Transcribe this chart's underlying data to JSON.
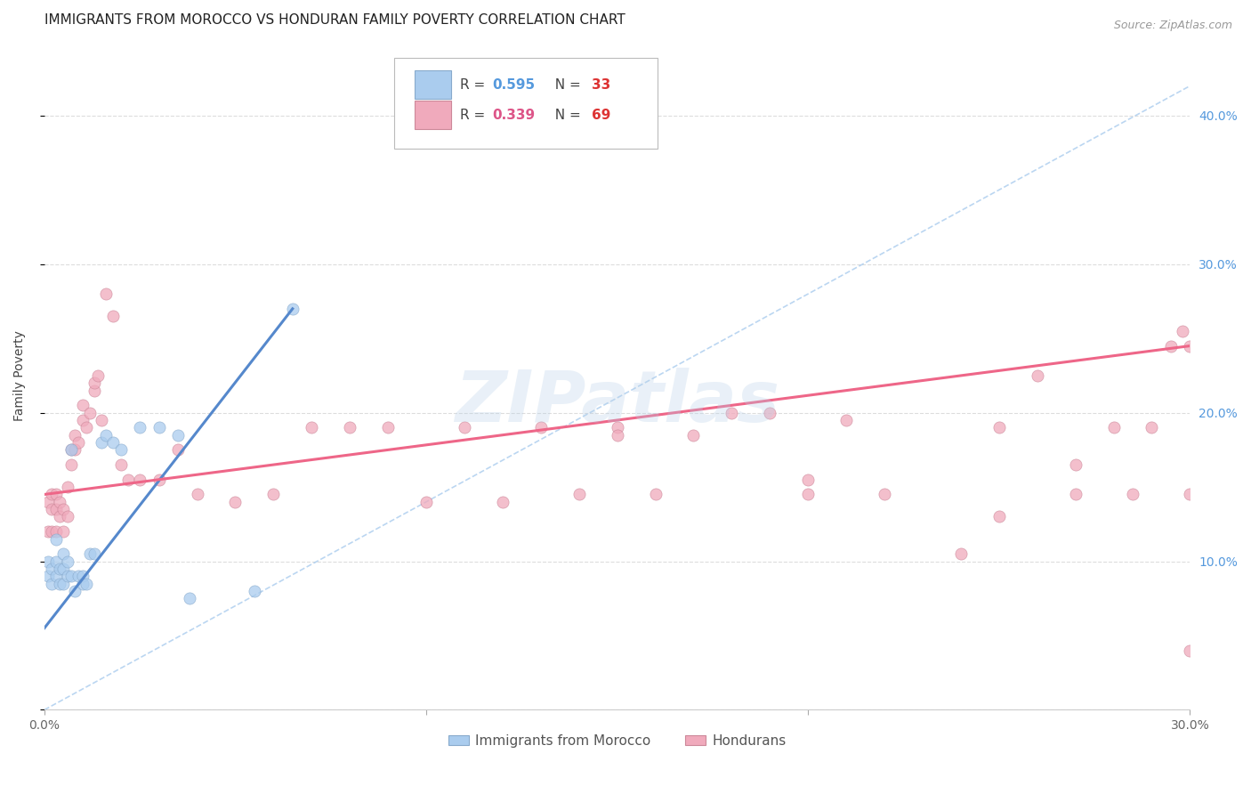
{
  "title": "IMMIGRANTS FROM MOROCCO VS HONDURAN FAMILY POVERTY CORRELATION CHART",
  "source": "Source: ZipAtlas.com",
  "ylabel": "Family Poverty",
  "xlim": [
    0.0,
    0.3
  ],
  "ylim": [
    0.0,
    0.45
  ],
  "ytick_values": [
    0.0,
    0.1,
    0.2,
    0.3,
    0.4
  ],
  "ytick_right_labels": [
    "",
    "10.0%",
    "20.0%",
    "30.0%",
    "40.0%"
  ],
  "xtick_values": [
    0.0,
    0.1,
    0.2,
    0.3
  ],
  "xtick_labels": [
    "0.0%",
    "",
    "",
    "30.0%"
  ],
  "legend_entries": [
    {
      "label": "Immigrants from Morocco",
      "color": "#aaccee",
      "edge": "#88aacc",
      "R": "0.595",
      "N": "33",
      "R_color": "#5599dd",
      "N_color": "#dd3333"
    },
    {
      "label": "Hondurans",
      "color": "#f0aabc",
      "edge": "#cc8899",
      "R": "0.339",
      "N": "69",
      "R_color": "#dd5588",
      "N_color": "#dd3333"
    }
  ],
  "background_color": "#ffffff",
  "grid_color": "#dddddd",
  "blue_scatter_x": [
    0.001,
    0.001,
    0.002,
    0.002,
    0.003,
    0.003,
    0.003,
    0.004,
    0.004,
    0.005,
    0.005,
    0.005,
    0.006,
    0.006,
    0.007,
    0.007,
    0.008,
    0.009,
    0.01,
    0.01,
    0.011,
    0.012,
    0.013,
    0.015,
    0.016,
    0.018,
    0.02,
    0.025,
    0.03,
    0.035,
    0.038,
    0.055,
    0.065
  ],
  "blue_scatter_y": [
    0.09,
    0.1,
    0.085,
    0.095,
    0.09,
    0.1,
    0.115,
    0.085,
    0.095,
    0.085,
    0.095,
    0.105,
    0.09,
    0.1,
    0.09,
    0.175,
    0.08,
    0.09,
    0.09,
    0.085,
    0.085,
    0.105,
    0.105,
    0.18,
    0.185,
    0.18,
    0.175,
    0.19,
    0.19,
    0.185,
    0.075,
    0.08,
    0.27
  ],
  "pink_scatter_x": [
    0.001,
    0.001,
    0.002,
    0.002,
    0.002,
    0.003,
    0.003,
    0.003,
    0.004,
    0.004,
    0.005,
    0.005,
    0.006,
    0.006,
    0.007,
    0.007,
    0.008,
    0.008,
    0.009,
    0.01,
    0.01,
    0.011,
    0.012,
    0.013,
    0.013,
    0.014,
    0.015,
    0.016,
    0.018,
    0.02,
    0.022,
    0.025,
    0.03,
    0.035,
    0.04,
    0.05,
    0.06,
    0.07,
    0.08,
    0.09,
    0.1,
    0.11,
    0.12,
    0.13,
    0.14,
    0.15,
    0.16,
    0.17,
    0.18,
    0.19,
    0.2,
    0.21,
    0.22,
    0.24,
    0.25,
    0.26,
    0.27,
    0.28,
    0.285,
    0.29,
    0.295,
    0.298,
    0.3,
    0.3,
    0.15,
    0.2,
    0.25,
    0.27,
    0.3
  ],
  "pink_scatter_y": [
    0.12,
    0.14,
    0.12,
    0.135,
    0.145,
    0.12,
    0.135,
    0.145,
    0.13,
    0.14,
    0.12,
    0.135,
    0.13,
    0.15,
    0.165,
    0.175,
    0.175,
    0.185,
    0.18,
    0.195,
    0.205,
    0.19,
    0.2,
    0.215,
    0.22,
    0.225,
    0.195,
    0.28,
    0.265,
    0.165,
    0.155,
    0.155,
    0.155,
    0.175,
    0.145,
    0.14,
    0.145,
    0.19,
    0.19,
    0.19,
    0.14,
    0.19,
    0.14,
    0.19,
    0.145,
    0.19,
    0.145,
    0.185,
    0.2,
    0.2,
    0.145,
    0.195,
    0.145,
    0.105,
    0.19,
    0.225,
    0.145,
    0.19,
    0.145,
    0.19,
    0.245,
    0.255,
    0.145,
    0.04,
    0.185,
    0.155,
    0.13,
    0.165,
    0.245
  ],
  "blue_line_x": [
    0.0,
    0.065
  ],
  "blue_line_y": [
    0.055,
    0.27
  ],
  "pink_line_x": [
    0.0,
    0.3
  ],
  "pink_line_y": [
    0.145,
    0.245
  ],
  "diag_line_x": [
    0.0,
    0.3
  ],
  "diag_line_y": [
    0.0,
    0.42
  ],
  "watermark": "ZIPatlas",
  "title_fontsize": 11,
  "axis_label_fontsize": 10,
  "tick_fontsize": 10,
  "right_tick_color": "#5599dd"
}
